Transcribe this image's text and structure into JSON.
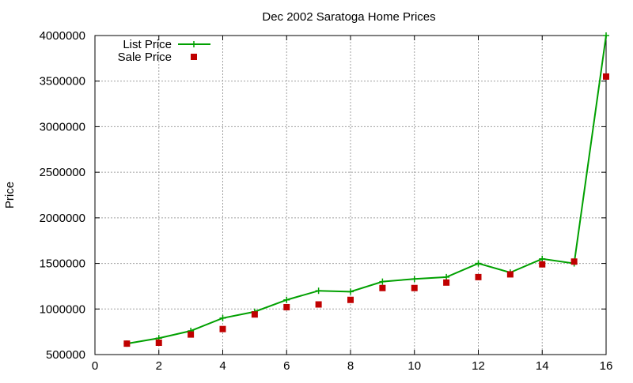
{
  "chart_data": {
    "type": "line",
    "title": "Dec 2002 Saratoga Home Prices",
    "xlabel": "",
    "ylabel": "Price",
    "xlim": [
      0,
      16
    ],
    "ylim": [
      500000,
      4000000
    ],
    "xticks": [
      0,
      2,
      4,
      6,
      8,
      10,
      12,
      14,
      16
    ],
    "yticks": [
      500000,
      1000000,
      1500000,
      2000000,
      2500000,
      3000000,
      3500000,
      4000000
    ],
    "grid": true,
    "legend_position": "top-left",
    "series": [
      {
        "name": "List Price",
        "style": "line-with-plus-markers",
        "color": "#00a000",
        "x": [
          1,
          2,
          3,
          4,
          5,
          6,
          7,
          8,
          9,
          10,
          11,
          12,
          13,
          14,
          15,
          16
        ],
        "values": [
          620000,
          680000,
          760000,
          900000,
          970000,
          1100000,
          1200000,
          1190000,
          1300000,
          1330000,
          1350000,
          1500000,
          1400000,
          1550000,
          1500000,
          4000000
        ]
      },
      {
        "name": "Sale Price",
        "style": "square-markers",
        "color": "#c00000",
        "x": [
          1,
          2,
          3,
          4,
          5,
          6,
          7,
          8,
          9,
          10,
          11,
          12,
          13,
          14,
          15,
          16
        ],
        "values": [
          620000,
          630000,
          720000,
          780000,
          940000,
          1020000,
          1050000,
          1100000,
          1230000,
          1230000,
          1290000,
          1350000,
          1380000,
          1490000,
          1520000,
          3550000
        ]
      }
    ]
  }
}
